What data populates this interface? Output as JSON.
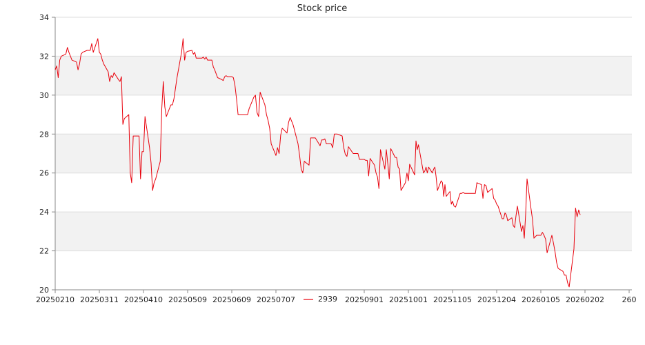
{
  "chart_data": {
    "type": "line",
    "title": "Stock price",
    "xlabel": "",
    "ylabel": "",
    "ylim": [
      20,
      34
    ],
    "yticks": [
      "20",
      "22",
      "24",
      "26",
      "28",
      "30",
      "32",
      "34"
    ],
    "xticks": [
      "20250210",
      "20250311",
      "20250410",
      "20250509",
      "20250609",
      "20250707",
      "",
      "20250901",
      "20251001",
      "20251105",
      "20251204",
      "20260105",
      "20260202",
      "260"
    ],
    "grid": true,
    "legend": "bottom-center",
    "colors": {
      "line": "#e8000b",
      "band": "#f2f2f2",
      "gridline": "#dddddd"
    },
    "series": [
      {
        "name": "2939",
        "points": [
          [
            "2025-02-10",
            31.3
          ],
          [
            "2025-02-11",
            31.5
          ],
          [
            "2025-02-12",
            30.9
          ],
          [
            "2025-02-13",
            31.8
          ],
          [
            "2025-02-14",
            32.0
          ],
          [
            "2025-02-17",
            32.1
          ],
          [
            "2025-02-18",
            32.45
          ],
          [
            "2025-02-19",
            32.2
          ],
          [
            "2025-02-20",
            32.0
          ],
          [
            "2025-02-21",
            31.8
          ],
          [
            "2025-02-24",
            31.7
          ],
          [
            "2025-02-25",
            31.3
          ],
          [
            "2025-02-26",
            31.6
          ],
          [
            "2025-02-27",
            32.1
          ],
          [
            "2025-02-28",
            32.2
          ],
          [
            "2025-03-03",
            32.3
          ],
          [
            "2025-03-04",
            32.3
          ],
          [
            "2025-03-05",
            32.3
          ],
          [
            "2025-03-06",
            32.65
          ],
          [
            "2025-03-07",
            32.2
          ],
          [
            "2025-03-10",
            32.9
          ],
          [
            "2025-03-11",
            32.2
          ],
          [
            "2025-03-12",
            32.1
          ],
          [
            "2025-03-13",
            31.8
          ],
          [
            "2025-03-14",
            31.6
          ],
          [
            "2025-03-17",
            31.2
          ],
          [
            "2025-03-18",
            30.7
          ],
          [
            "2025-03-19",
            31.0
          ],
          [
            "2025-03-20",
            30.9
          ],
          [
            "2025-03-21",
            31.15
          ],
          [
            "2025-03-24",
            30.8
          ],
          [
            "2025-03-25",
            30.7
          ],
          [
            "2025-03-26",
            30.95
          ],
          [
            "2025-03-27",
            28.5
          ],
          [
            "2025-03-28",
            28.8
          ],
          [
            "2025-03-31",
            29.0
          ],
          [
            "2025-04-01",
            26.0
          ],
          [
            "2025-04-02",
            25.5
          ],
          [
            "2025-04-03",
            27.9
          ],
          [
            "2025-04-07",
            27.9
          ],
          [
            "2025-04-08",
            25.7
          ],
          [
            "2025-04-09",
            27.1
          ],
          [
            "2025-04-10",
            27.1
          ],
          [
            "2025-04-11",
            28.9
          ],
          [
            "2025-04-14",
            27.3
          ],
          [
            "2025-04-15",
            26.5
          ],
          [
            "2025-04-16",
            25.1
          ],
          [
            "2025-04-17",
            25.5
          ],
          [
            "2025-04-18",
            25.7
          ],
          [
            "2025-04-21",
            26.6
          ],
          [
            "2025-04-22",
            29.3
          ],
          [
            "2025-04-23",
            30.7
          ],
          [
            "2025-04-24",
            29.4
          ],
          [
            "2025-04-25",
            28.9
          ],
          [
            "2025-04-28",
            29.5
          ],
          [
            "2025-04-29",
            29.5
          ],
          [
            "2025-04-30",
            29.8
          ],
          [
            "2025-05-02",
            30.9
          ],
          [
            "2025-05-05",
            32.2
          ],
          [
            "2025-05-06",
            32.9
          ],
          [
            "2025-05-07",
            31.8
          ],
          [
            "2025-05-08",
            32.2
          ],
          [
            "2025-05-09",
            32.25
          ],
          [
            "2025-05-12",
            32.3
          ],
          [
            "2025-05-13",
            32.1
          ],
          [
            "2025-05-14",
            32.2
          ],
          [
            "2025-05-15",
            31.9
          ],
          [
            "2025-05-16",
            31.9
          ],
          [
            "2025-05-19",
            31.9
          ],
          [
            "2025-05-20",
            31.95
          ],
          [
            "2025-05-21",
            31.85
          ],
          [
            "2025-05-22",
            31.95
          ],
          [
            "2025-05-23",
            31.8
          ],
          [
            "2025-05-26",
            31.8
          ],
          [
            "2025-05-27",
            31.45
          ],
          [
            "2025-05-28",
            31.3
          ],
          [
            "2025-05-29",
            31.1
          ],
          [
            "2025-05-30",
            30.9
          ],
          [
            "2025-06-02",
            30.8
          ],
          [
            "2025-06-03",
            30.75
          ],
          [
            "2025-06-04",
            30.95
          ],
          [
            "2025-06-05",
            31.0
          ],
          [
            "2025-06-06",
            30.95
          ],
          [
            "2025-06-09",
            30.95
          ],
          [
            "2025-06-10",
            30.9
          ],
          [
            "2025-06-11",
            30.5
          ],
          [
            "2025-06-12",
            29.8
          ],
          [
            "2025-06-13",
            29.0
          ],
          [
            "2025-06-16",
            29.0
          ],
          [
            "2025-06-17",
            29.0
          ],
          [
            "2025-06-18",
            29.0
          ],
          [
            "2025-06-19",
            29.0
          ],
          [
            "2025-06-20",
            29.3
          ],
          [
            "2025-06-23",
            29.9
          ],
          [
            "2025-06-24",
            30.0
          ],
          [
            "2025-06-25",
            29.1
          ],
          [
            "2025-06-26",
            28.9
          ],
          [
            "2025-06-27",
            30.15
          ],
          [
            "2025-06-30",
            29.5
          ],
          [
            "2025-07-01",
            29.0
          ],
          [
            "2025-07-02",
            28.7
          ],
          [
            "2025-07-03",
            28.3
          ],
          [
            "2025-07-04",
            27.5
          ],
          [
            "2025-07-07",
            26.9
          ],
          [
            "2025-07-08",
            27.3
          ],
          [
            "2025-07-09",
            27.0
          ],
          [
            "2025-07-10",
            27.95
          ],
          [
            "2025-07-11",
            28.3
          ],
          [
            "2025-07-14",
            28.05
          ],
          [
            "2025-07-15",
            28.6
          ],
          [
            "2025-07-16",
            28.85
          ],
          [
            "2025-07-17",
            28.65
          ],
          [
            "2025-07-18",
            28.45
          ],
          [
            "2025-07-21",
            27.5
          ],
          [
            "2025-07-22",
            26.9
          ],
          [
            "2025-07-23",
            26.2
          ],
          [
            "2025-07-24",
            26.0
          ],
          [
            "2025-07-25",
            26.6
          ],
          [
            "2025-07-28",
            26.4
          ],
          [
            "2025-07-29",
            27.8
          ],
          [
            "2025-07-30",
            27.8
          ],
          [
            "2025-07-31",
            27.8
          ],
          [
            "2025-08-01",
            27.8
          ],
          [
            "2025-08-04",
            27.4
          ],
          [
            "2025-08-05",
            27.7
          ],
          [
            "2025-08-06",
            27.7
          ],
          [
            "2025-08-07",
            27.75
          ],
          [
            "2025-08-08",
            27.5
          ],
          [
            "2025-08-11",
            27.5
          ],
          [
            "2025-08-12",
            27.3
          ],
          [
            "2025-08-13",
            28.0
          ],
          [
            "2025-08-14",
            28.0
          ],
          [
            "2025-08-15",
            28.0
          ],
          [
            "2025-08-18",
            27.9
          ],
          [
            "2025-08-19",
            27.3
          ],
          [
            "2025-08-20",
            26.95
          ],
          [
            "2025-08-21",
            26.85
          ],
          [
            "2025-08-22",
            27.35
          ],
          [
            "2025-08-25",
            27.0
          ],
          [
            "2025-08-26",
            27.0
          ],
          [
            "2025-08-27",
            27.0
          ],
          [
            "2025-08-28",
            27.0
          ],
          [
            "2025-08-29",
            26.7
          ],
          [
            "2025-09-01",
            26.7
          ],
          [
            "2025-09-02",
            26.65
          ],
          [
            "2025-09-03",
            26.65
          ],
          [
            "2025-09-04",
            25.85
          ],
          [
            "2025-09-05",
            26.75
          ],
          [
            "2025-09-08",
            26.4
          ],
          [
            "2025-09-09",
            26.0
          ],
          [
            "2025-09-10",
            25.8
          ],
          [
            "2025-09-11",
            25.2
          ],
          [
            "2025-09-12",
            27.2
          ],
          [
            "2025-09-15",
            26.2
          ],
          [
            "2025-09-16",
            27.2
          ],
          [
            "2025-09-17",
            26.5
          ],
          [
            "2025-09-18",
            25.7
          ],
          [
            "2025-09-19",
            27.25
          ],
          [
            "2025-09-22",
            26.8
          ],
          [
            "2025-09-23",
            26.8
          ],
          [
            "2025-09-24",
            26.3
          ],
          [
            "2025-09-25",
            26.2
          ],
          [
            "2025-09-26",
            25.1
          ],
          [
            "2025-09-29",
            25.5
          ],
          [
            "2025-09-30",
            26.0
          ],
          [
            "2025-10-01",
            25.6
          ],
          [
            "2025-10-02",
            26.45
          ],
          [
            "2025-10-06",
            25.9
          ],
          [
            "2025-10-07",
            27.65
          ],
          [
            "2025-10-08",
            27.2
          ],
          [
            "2025-10-09",
            27.45
          ],
          [
            "2025-10-13",
            26.0
          ],
          [
            "2025-10-14",
            26.1
          ],
          [
            "2025-10-15",
            26.3
          ],
          [
            "2025-10-16",
            26.0
          ],
          [
            "2025-10-17",
            26.3
          ],
          [
            "2025-10-20",
            26.0
          ],
          [
            "2025-10-21",
            26.2
          ],
          [
            "2025-10-22",
            26.3
          ],
          [
            "2025-10-23",
            25.8
          ],
          [
            "2025-10-24",
            25.1
          ],
          [
            "2025-10-27",
            25.6
          ],
          [
            "2025-10-28",
            25.5
          ],
          [
            "2025-10-29",
            24.8
          ],
          [
            "2025-10-30",
            25.4
          ],
          [
            "2025-10-31",
            24.8
          ],
          [
            "2025-11-03",
            25.05
          ],
          [
            "2025-11-04",
            24.4
          ],
          [
            "2025-11-05",
            24.55
          ],
          [
            "2025-11-06",
            24.3
          ],
          [
            "2025-11-07",
            24.25
          ],
          [
            "2025-11-10",
            24.95
          ],
          [
            "2025-11-11",
            24.95
          ],
          [
            "2025-11-12",
            25.0
          ],
          [
            "2025-11-13",
            24.95
          ],
          [
            "2025-11-14",
            24.95
          ],
          [
            "2025-11-17",
            24.95
          ],
          [
            "2025-11-18",
            24.95
          ],
          [
            "2025-11-19",
            24.95
          ],
          [
            "2025-11-20",
            24.95
          ],
          [
            "2025-11-21",
            25.5
          ],
          [
            "2025-11-24",
            25.4
          ],
          [
            "2025-11-25",
            24.7
          ],
          [
            "2025-11-26",
            25.4
          ],
          [
            "2025-11-27",
            25.35
          ],
          [
            "2025-11-28",
            25.0
          ],
          [
            "2025-12-01",
            25.2
          ],
          [
            "2025-12-02",
            24.7
          ],
          [
            "2025-12-03",
            24.6
          ],
          [
            "2025-12-04",
            24.4
          ],
          [
            "2025-12-05",
            24.3
          ],
          [
            "2025-12-08",
            23.65
          ],
          [
            "2025-12-09",
            23.65
          ],
          [
            "2025-12-10",
            23.95
          ],
          [
            "2025-12-11",
            23.85
          ],
          [
            "2025-12-12",
            23.55
          ],
          [
            "2025-12-15",
            23.7
          ],
          [
            "2025-12-16",
            23.3
          ],
          [
            "2025-12-17",
            23.2
          ],
          [
            "2025-12-18",
            23.8
          ],
          [
            "2025-12-19",
            24.3
          ],
          [
            "2025-12-22",
            23.0
          ],
          [
            "2025-12-23",
            23.3
          ],
          [
            "2025-12-24",
            22.65
          ],
          [
            "2025-12-25",
            23.9
          ],
          [
            "2025-12-26",
            25.7
          ],
          [
            "2025-12-29",
            24.1
          ],
          [
            "2025-12-30",
            23.6
          ],
          [
            "2025-12-31",
            22.65
          ],
          [
            "2026-01-02",
            22.8
          ],
          [
            "2026-01-05",
            22.8
          ],
          [
            "2026-01-06",
            22.95
          ],
          [
            "2026-01-07",
            22.8
          ],
          [
            "2026-01-08",
            22.6
          ],
          [
            "2026-01-09",
            21.9
          ],
          [
            "2026-01-12",
            22.8
          ],
          [
            "2026-01-13",
            22.4
          ],
          [
            "2026-01-14",
            21.95
          ],
          [
            "2026-01-15",
            21.4
          ],
          [
            "2026-01-16",
            21.1
          ],
          [
            "2026-01-19",
            20.95
          ],
          [
            "2026-01-20",
            20.75
          ],
          [
            "2026-01-21",
            20.75
          ],
          [
            "2026-01-22",
            20.35
          ],
          [
            "2026-01-23",
            20.15
          ],
          [
            "2026-01-26",
            22.1
          ],
          [
            "2026-01-27",
            24.2
          ],
          [
            "2026-01-28",
            23.75
          ],
          [
            "2026-01-29",
            24.1
          ],
          [
            "2026-01-30",
            23.85
          ]
        ]
      }
    ]
  }
}
